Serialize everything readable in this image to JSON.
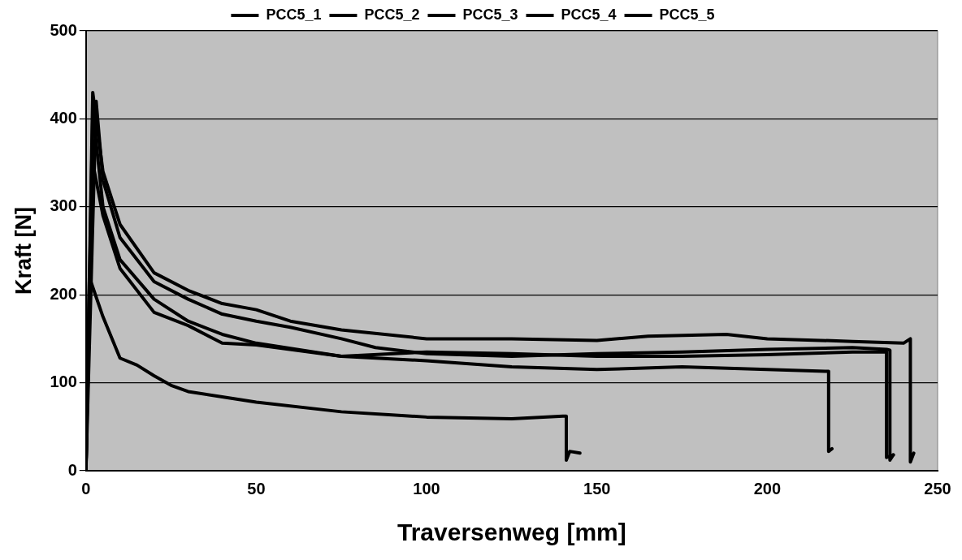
{
  "chart_data": {
    "type": "line",
    "xlabel": "Traversenweg [mm]",
    "ylabel": "Kraft [N]",
    "xlim": [
      0,
      250
    ],
    "ylim": [
      0,
      500
    ],
    "xticks": [
      0,
      50,
      100,
      150,
      200,
      250
    ],
    "yticks": [
      0,
      100,
      200,
      300,
      400,
      500
    ],
    "grid": "y",
    "legend": "top",
    "marker": "none",
    "line_style": "solid",
    "series": [
      {
        "name": "PCC5_1",
        "color": "#000000",
        "x": [
          0,
          1,
          5,
          10,
          15,
          20,
          25,
          30,
          40,
          50,
          75,
          100,
          125,
          140,
          141,
          141,
          142,
          145
        ],
        "values": [
          0,
          220,
          175,
          128,
          120,
          108,
          97,
          90,
          84,
          78,
          67,
          61,
          59,
          62,
          62,
          12,
          22,
          20
        ]
      },
      {
        "name": "PCC5_2",
        "color": "#000000",
        "x": [
          0,
          2,
          5,
          10,
          20,
          30,
          40,
          50,
          75,
          100,
          125,
          150,
          175,
          200,
          217,
          218,
          218,
          219
        ],
        "values": [
          0,
          350,
          290,
          230,
          180,
          165,
          145,
          143,
          130,
          125,
          118,
          115,
          118,
          115,
          113,
          113,
          22,
          25
        ]
      },
      {
        "name": "PCC5_3",
        "color": "#000000",
        "x": [
          0,
          2,
          5,
          10,
          20,
          30,
          40,
          50,
          60,
          75,
          100,
          125,
          150,
          165,
          188,
          200,
          225,
          240,
          242,
          242,
          243
        ],
        "values": [
          0,
          430,
          340,
          280,
          225,
          205,
          190,
          183,
          170,
          160,
          150,
          150,
          148,
          153,
          155,
          150,
          147,
          145,
          150,
          10,
          20
        ]
      },
      {
        "name": "PCC5_4",
        "color": "#000000",
        "x": [
          0,
          3,
          5,
          10,
          20,
          30,
          40,
          50,
          60,
          75,
          85,
          100,
          125,
          150,
          175,
          200,
          225,
          235,
          236,
          236,
          237
        ],
        "values": [
          0,
          420,
          330,
          265,
          215,
          195,
          178,
          170,
          163,
          150,
          140,
          133,
          130,
          133,
          135,
          138,
          140,
          138,
          137,
          12,
          18
        ]
      },
      {
        "name": "PCC5_5",
        "color": "#000000",
        "x": [
          0,
          2,
          5,
          10,
          20,
          30,
          40,
          50,
          75,
          100,
          125,
          150,
          175,
          200,
          225,
          235,
          235,
          237
        ],
        "values": [
          0,
          410,
          300,
          240,
          195,
          170,
          155,
          145,
          130,
          135,
          133,
          130,
          130,
          132,
          135,
          135,
          15,
          18
        ]
      }
    ]
  }
}
